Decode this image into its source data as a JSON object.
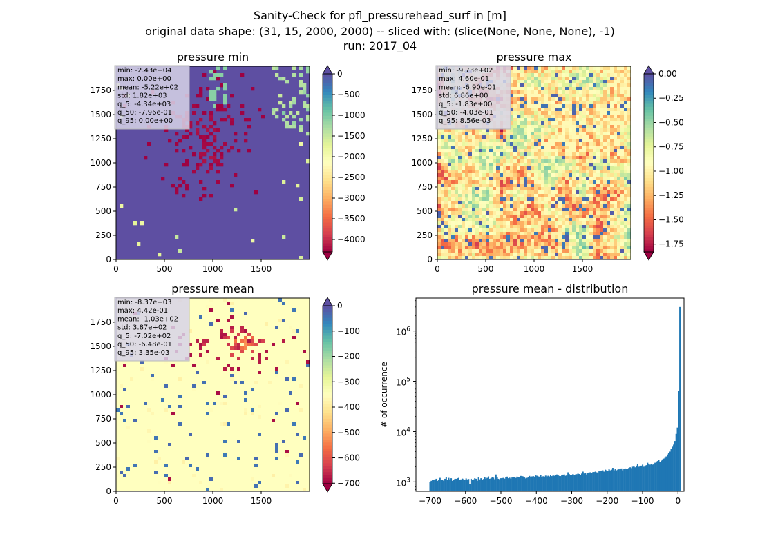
{
  "figure": {
    "title_line1": "Sanity-Check for pfl_pressurehead_surf in [m]",
    "title_line2": "original data shape: (31, 15, 2000, 2000) -- sliced with: (slice(None, None, None), -1)",
    "title_line3": "run: 2017_04"
  },
  "colors": {
    "spectral": [
      "#9e0142",
      "#d53e4f",
      "#f46d43",
      "#fdae61",
      "#fee08b",
      "#ffffbf",
      "#e6f598",
      "#abdda4",
      "#66c2a5",
      "#3288bd",
      "#5e4fa2"
    ],
    "hist_bar": "#1f77b4",
    "stats_box_bg": "#d7d3e8"
  },
  "chart_data": [
    {
      "id": "pressure_min",
      "type": "heatmap",
      "title": "pressure min",
      "xlabel": "",
      "ylabel": "",
      "xlim": [
        0,
        2000
      ],
      "ylim": [
        0,
        2000
      ],
      "xticks": [
        0,
        500,
        1000,
        1500
      ],
      "yticks": [
        0,
        250,
        500,
        750,
        1000,
        1250,
        1500,
        1750
      ],
      "colormap": "Spectral",
      "dominant_value": 0,
      "colorbar": {
        "vmin": -4300,
        "vmax": 0,
        "ticks": [
          0,
          -500,
          -1000,
          -1500,
          -2000,
          -2500,
          -3000,
          -3500,
          -4000
        ],
        "tick_labels": [
          "0",
          "−500",
          "−1000",
          "−1500",
          "−2000",
          "−2500",
          "−3000",
          "−3500",
          "−4000"
        ],
        "extend": "both"
      },
      "stats": [
        "min: -2.43e+04",
        "max: 0.00e+00",
        "mean: -5.22e+02",
        "std: 1.82e+03",
        "q_5: -4.34e+03",
        "q_50: -7.96e-01",
        "q_95: 0.00e+00"
      ]
    },
    {
      "id": "pressure_max",
      "type": "heatmap",
      "title": "pressure max",
      "xlabel": "",
      "ylabel": "",
      "xlim": [
        0,
        2000
      ],
      "ylim": [
        0,
        2000
      ],
      "xticks": [
        0,
        500,
        1000,
        1500
      ],
      "yticks": [
        0,
        250,
        500,
        750,
        1000,
        1250,
        1500,
        1750
      ],
      "colormap": "Spectral",
      "dominant_value": -0.7,
      "colorbar": {
        "vmin": -1.83,
        "vmax": 0.0,
        "ticks": [
          0.0,
          -0.25,
          -0.5,
          -0.75,
          -1.0,
          -1.25,
          -1.5,
          -1.75
        ],
        "tick_labels": [
          "0.00",
          "−0.25",
          "−0.50",
          "−0.75",
          "−1.00",
          "−1.25",
          "−1.50",
          "−1.75"
        ],
        "extend": "both"
      },
      "stats": [
        "min: -9.73e+02",
        "max: 4.60e-01",
        "mean: -6.90e-01",
        "std: 6.86e+00",
        "q_5: -1.83e+00",
        "q_50: -4.03e-01",
        "q_95: 8.56e-03"
      ]
    },
    {
      "id": "pressure_mean",
      "type": "heatmap",
      "title": "pressure mean",
      "xlabel": "",
      "ylabel": "",
      "xlim": [
        0,
        2000
      ],
      "ylim": [
        0,
        2000
      ],
      "xticks": [
        0,
        500,
        1000,
        1500
      ],
      "yticks": [
        0,
        250,
        500,
        750,
        1000,
        1250,
        1500,
        1750
      ],
      "colormap": "Spectral",
      "dominant_value": 0,
      "colorbar": {
        "vmin": -702,
        "vmax": 0,
        "ticks": [
          0,
          -100,
          -200,
          -300,
          -400,
          -500,
          -600,
          -700
        ],
        "tick_labels": [
          "0",
          "−100",
          "−200",
          "−300",
          "−400",
          "−500",
          "−600",
          "−700"
        ],
        "extend": "both"
      },
      "stats": [
        "min: -8.37e+03",
        "max: 4.42e-01",
        "mean: -1.03e+02",
        "std: 3.87e+02",
        "q_5: -7.02e+02",
        "q_50: -6.48e-01",
        "q_95: 3.35e-03"
      ]
    },
    {
      "id": "pressure_mean_distribution",
      "type": "bar",
      "title": "pressure mean - distribution",
      "xlabel": "",
      "ylabel": "# of occurrence",
      "xlim": [
        -740,
        17
      ],
      "ylim": [
        650,
        4500000
      ],
      "yscale": "log",
      "xticks": [
        -700,
        -600,
        -500,
        -400,
        -300,
        -200,
        -100,
        0
      ],
      "xtick_labels": [
        "−700",
        "−600",
        "−500",
        "−400",
        "−300",
        "−200",
        "−100",
        "0"
      ],
      "yticks": [
        1000,
        10000,
        100000,
        1000000
      ],
      "bin_range": [
        -702,
        0
      ],
      "bin_count": 200,
      "values": [
        1000,
        1050,
        1100,
        1080,
        1120,
        1150,
        1050,
        1100,
        1200,
        1100,
        1080,
        1050,
        1150,
        1250,
        1100,
        1200,
        1120,
        1180,
        1050,
        1100,
        1150,
        1150,
        1180,
        1200,
        1080,
        1120,
        1160,
        1130,
        1100,
        1170,
        1120,
        1140,
        900,
        1150,
        1100,
        1120,
        1180,
        1150,
        1050,
        1220,
        1120,
        1180,
        1100,
        1140,
        1250,
        1160,
        1200,
        1280,
        1150,
        1180,
        1250,
        1210,
        1130,
        1400,
        1220,
        1150,
        1120,
        1180,
        1190,
        1200,
        1160,
        1230,
        1270,
        1180,
        1210,
        1160,
        1220,
        1240,
        1250,
        1200,
        1270,
        1260,
        1220,
        1310,
        1300,
        1280,
        1220,
        1170,
        1200,
        1250,
        1310,
        1260,
        1280,
        1300,
        1270,
        1340,
        1320,
        1280,
        1270,
        1350,
        1250,
        1290,
        1270,
        1330,
        1280,
        1320,
        1280,
        1360,
        1300,
        1340,
        1320,
        1380,
        1400,
        1350,
        1310,
        1300,
        1370,
        1390,
        1400,
        1320,
        1380,
        1550,
        1420,
        1360,
        1380,
        1430,
        1350,
        1400,
        1420,
        1460,
        1430,
        1350,
        1460,
        1600,
        1470,
        1500,
        1400,
        1520,
        1540,
        1550,
        1500,
        1560,
        1570,
        1600,
        1550,
        1480,
        1620,
        1640,
        1680,
        1700,
        1600,
        1750,
        1700,
        1650,
        1780,
        1700,
        1750,
        1900,
        1700,
        1800,
        1700,
        1750,
        1780,
        1800,
        1850,
        1700,
        1800,
        1850,
        1820,
        1840,
        1900,
        1950,
        1880,
        2000,
        2050,
        1950,
        2100,
        2300,
        2000,
        2050,
        2100,
        2200,
        2000,
        2100,
        2150,
        2400,
        2300,
        2200,
        2300,
        2200,
        2300,
        2400,
        2500,
        2600,
        2700,
        2500,
        2650,
        2800,
        2900,
        3000,
        3200,
        3500,
        3800,
        4000,
        4500,
        5000,
        5500,
        6500,
        9000,
        12000,
        65000,
        3000000
      ]
    }
  ]
}
